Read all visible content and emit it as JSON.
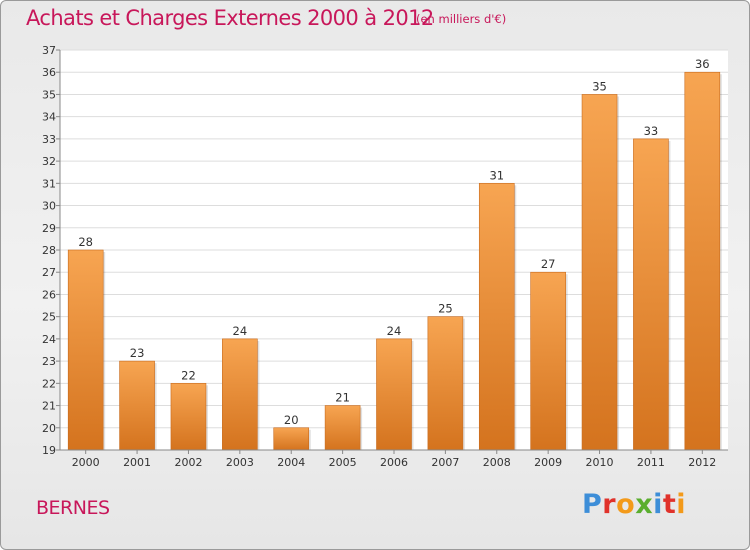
{
  "header": {
    "title": "Achats et Charges Externes 2000 à 2012",
    "subtitle": "(en milliers d'€)"
  },
  "footer": {
    "town": "BERNES",
    "logo": [
      "P",
      "r",
      "o",
      "x",
      "i",
      "t",
      "i"
    ]
  },
  "colors": {
    "text": "#c8175a",
    "bar_light": "#f7a552",
    "bar_dark": "#d4731e",
    "logo": [
      "#3d8ed8",
      "#e0322b",
      "#f39a1a",
      "#5aae2e",
      "#3d8ed8",
      "#e0322b",
      "#f39a1a"
    ]
  },
  "chart_data": {
    "type": "bar",
    "title": "Achats et Charges Externes 2000 à 2012",
    "subtitle": "(en milliers d'€)",
    "categories": [
      "2000",
      "2001",
      "2002",
      "2003",
      "2004",
      "2005",
      "2006",
      "2007",
      "2008",
      "2009",
      "2010",
      "2011",
      "2012"
    ],
    "values": [
      28,
      23,
      22,
      24,
      20,
      21,
      24,
      25,
      31,
      27,
      35,
      33,
      36
    ],
    "ylim": [
      19,
      37
    ],
    "yticks": [
      19,
      20,
      21,
      22,
      23,
      24,
      25,
      26,
      27,
      28,
      29,
      30,
      31,
      32,
      33,
      34,
      35,
      36,
      37
    ],
    "grid": true,
    "data_labels": true
  }
}
